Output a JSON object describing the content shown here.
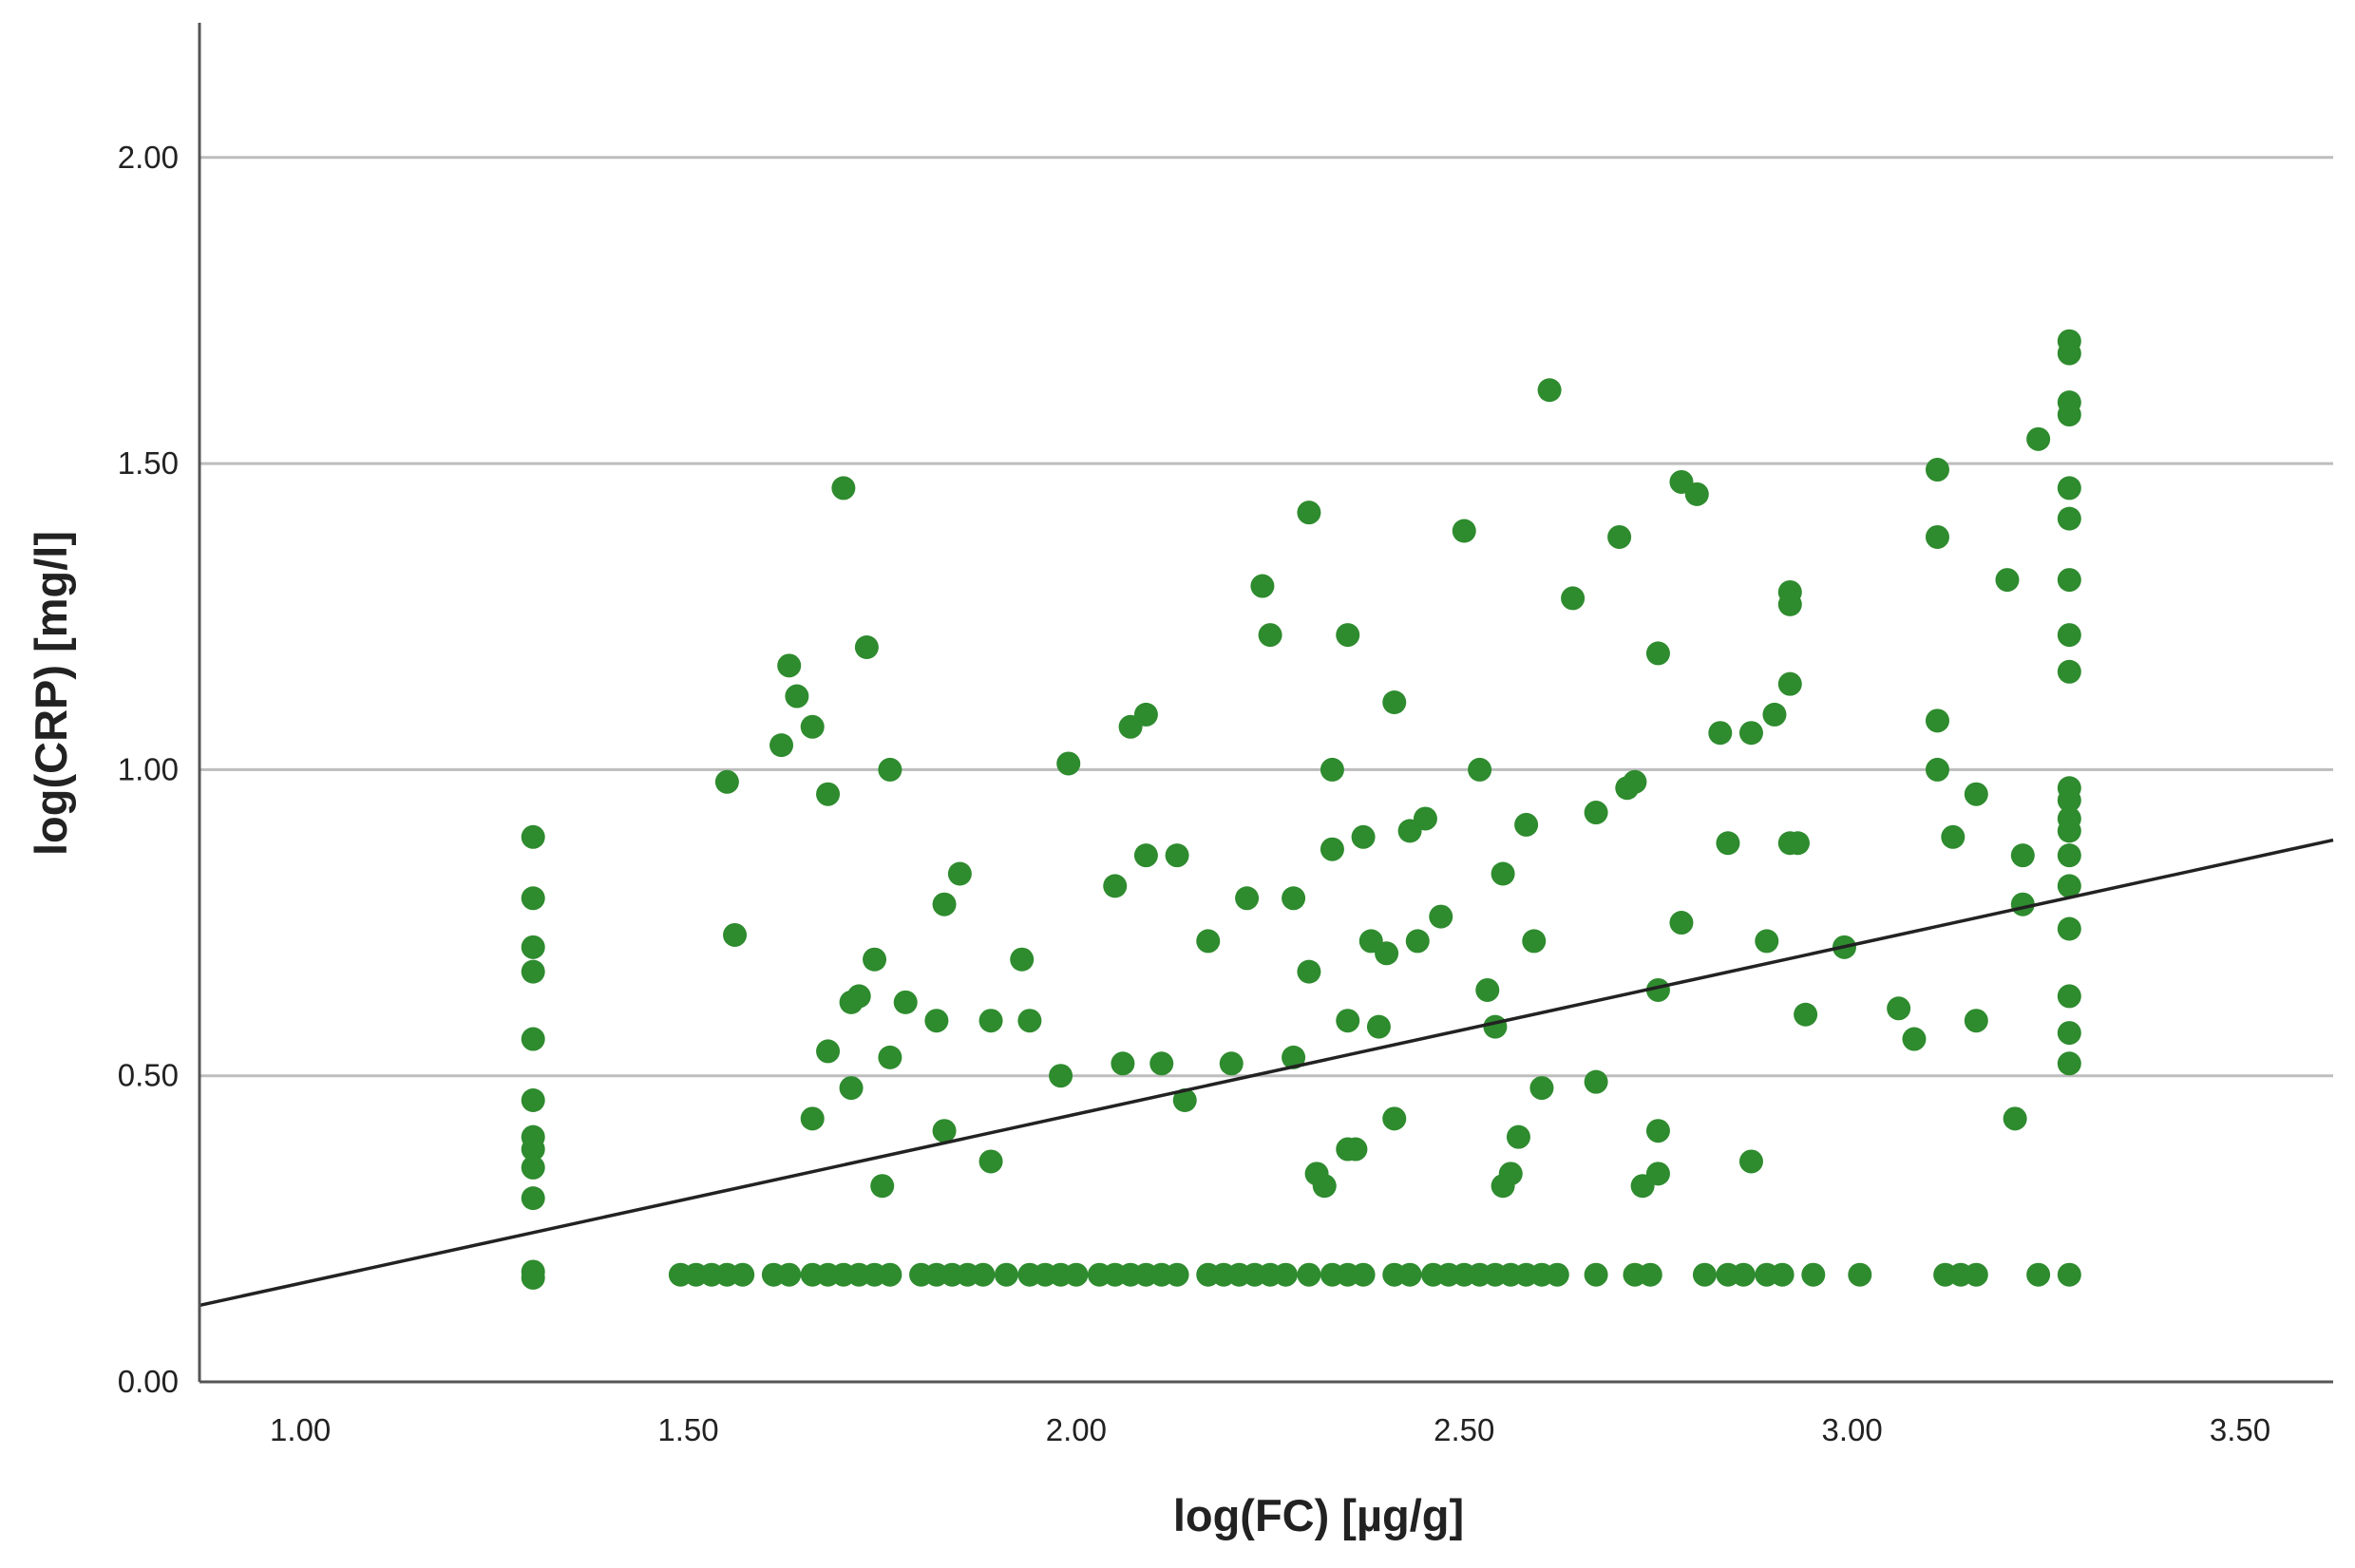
{
  "chart_data": {
    "type": "scatter",
    "title": "",
    "xlabel": "log(FC) [µg/g]",
    "ylabel": "log(CRP) [mg/l]",
    "xlim": [
      0.87,
      3.62
    ],
    "ylim": [
      0.0,
      2.22
    ],
    "x_ticks": [
      "1.00",
      "1.50",
      "2.00",
      "2.50",
      "3.00",
      "3.50"
    ],
    "y_ticks": [
      "0.00",
      "0.50",
      "1.00",
      "1.50",
      "2.00"
    ],
    "grid": "horizontal",
    "colors": {
      "points": "#2e8b2e",
      "fit_line": "#222222",
      "grid": "#bdbdbd",
      "axis": "#555555"
    },
    "fit_line": {
      "x": [
        0.87,
        3.62
      ],
      "y": [
        0.125,
        0.885
      ]
    },
    "points": [
      [
        1.3,
        0.89
      ],
      [
        1.3,
        0.79
      ],
      [
        1.3,
        0.71
      ],
      [
        1.3,
        0.67
      ],
      [
        1.3,
        0.56
      ],
      [
        1.3,
        0.46
      ],
      [
        1.3,
        0.4
      ],
      [
        1.3,
        0.38
      ],
      [
        1.3,
        0.35
      ],
      [
        1.3,
        0.3
      ],
      [
        1.3,
        0.18
      ],
      [
        1.3,
        0.17
      ],
      [
        1.55,
        0.98
      ],
      [
        1.56,
        0.73
      ],
      [
        1.62,
        1.04
      ],
      [
        1.63,
        1.17
      ],
      [
        1.64,
        1.12
      ],
      [
        1.66,
        1.07
      ],
      [
        1.66,
        0.43
      ],
      [
        1.68,
        0.54
      ],
      [
        1.68,
        0.96
      ],
      [
        1.7,
        1.46
      ],
      [
        1.71,
        0.62
      ],
      [
        1.71,
        0.48
      ],
      [
        1.72,
        0.63
      ],
      [
        1.73,
        1.2
      ],
      [
        1.74,
        0.69
      ],
      [
        1.75,
        0.32
      ],
      [
        1.76,
        0.53
      ],
      [
        1.76,
        1.0
      ],
      [
        1.78,
        0.62
      ],
      [
        1.82,
        0.59
      ],
      [
        1.83,
        0.78
      ],
      [
        1.83,
        0.41
      ],
      [
        1.85,
        0.83
      ],
      [
        1.89,
        0.59
      ],
      [
        1.89,
        0.36
      ],
      [
        1.93,
        0.69
      ],
      [
        1.94,
        0.59
      ],
      [
        1.98,
        0.5
      ],
      [
        1.99,
        1.01
      ],
      [
        2.05,
        0.81
      ],
      [
        2.06,
        0.52
      ],
      [
        2.07,
        1.07
      ],
      [
        2.09,
        0.86
      ],
      [
        2.09,
        1.09
      ],
      [
        2.11,
        0.52
      ],
      [
        2.13,
        0.86
      ],
      [
        2.14,
        0.46
      ],
      [
        2.17,
        0.72
      ],
      [
        2.2,
        0.52
      ],
      [
        2.22,
        0.79
      ],
      [
        2.24,
        1.3
      ],
      [
        2.25,
        1.22
      ],
      [
        2.28,
        0.79
      ],
      [
        2.28,
        0.53
      ],
      [
        2.3,
        0.67
      ],
      [
        2.3,
        1.42
      ],
      [
        2.31,
        0.34
      ],
      [
        2.32,
        0.32
      ],
      [
        2.33,
        0.87
      ],
      [
        2.33,
        1.0
      ],
      [
        2.35,
        1.22
      ],
      [
        2.35,
        0.59
      ],
      [
        2.35,
        0.38
      ],
      [
        2.36,
        0.38
      ],
      [
        2.37,
        0.89
      ],
      [
        2.38,
        0.72
      ],
      [
        2.39,
        0.58
      ],
      [
        2.4,
        0.7
      ],
      [
        2.41,
        0.43
      ],
      [
        2.41,
        1.11
      ],
      [
        2.43,
        0.9
      ],
      [
        2.44,
        0.72
      ],
      [
        2.45,
        0.92
      ],
      [
        2.47,
        0.76
      ],
      [
        2.5,
        1.39
      ],
      [
        2.52,
        1.0
      ],
      [
        2.53,
        0.64
      ],
      [
        2.54,
        0.58
      ],
      [
        2.55,
        0.32
      ],
      [
        2.55,
        0.83
      ],
      [
        2.56,
        0.34
      ],
      [
        2.57,
        0.4
      ],
      [
        2.58,
        0.91
      ],
      [
        2.59,
        0.72
      ],
      [
        2.6,
        0.48
      ],
      [
        2.61,
        1.62
      ],
      [
        2.64,
        1.28
      ],
      [
        2.67,
        0.93
      ],
      [
        2.67,
        0.49
      ],
      [
        2.7,
        1.38
      ],
      [
        2.71,
        0.97
      ],
      [
        2.72,
        0.98
      ],
      [
        2.73,
        0.32
      ],
      [
        2.75,
        0.41
      ],
      [
        2.75,
        0.64
      ],
      [
        2.75,
        1.19
      ],
      [
        2.75,
        0.34
      ],
      [
        2.78,
        1.47
      ],
      [
        2.78,
        0.75
      ],
      [
        2.8,
        1.45
      ],
      [
        2.83,
        1.06
      ],
      [
        2.84,
        0.88
      ],
      [
        2.87,
        1.06
      ],
      [
        2.87,
        0.36
      ],
      [
        2.89,
        0.72
      ],
      [
        2.9,
        1.09
      ],
      [
        2.92,
        1.27
      ],
      [
        2.92,
        1.29
      ],
      [
        2.92,
        1.14
      ],
      [
        2.92,
        0.88
      ],
      [
        2.93,
        0.88
      ],
      [
        2.94,
        0.6
      ],
      [
        2.99,
        0.71
      ],
      [
        3.06,
        0.61
      ],
      [
        3.08,
        0.56
      ],
      [
        3.11,
        1.38
      ],
      [
        3.11,
        1.49
      ],
      [
        3.11,
        1.08
      ],
      [
        3.11,
        1.0
      ],
      [
        3.13,
        0.89
      ],
      [
        3.16,
        0.59
      ],
      [
        3.16,
        0.96
      ],
      [
        3.2,
        1.31
      ],
      [
        3.21,
        0.43
      ],
      [
        3.22,
        0.86
      ],
      [
        3.22,
        0.78
      ],
      [
        3.24,
        1.54
      ],
      [
        3.28,
        1.7
      ],
      [
        3.28,
        1.68
      ],
      [
        3.28,
        1.6
      ],
      [
        3.28,
        1.58
      ],
      [
        3.28,
        1.46
      ],
      [
        3.28,
        1.41
      ],
      [
        3.28,
        1.31
      ],
      [
        3.28,
        1.22
      ],
      [
        3.28,
        1.16
      ],
      [
        3.28,
        0.97
      ],
      [
        3.28,
        0.95
      ],
      [
        3.28,
        0.92
      ],
      [
        3.28,
        0.9
      ],
      [
        3.28,
        0.86
      ],
      [
        3.28,
        0.81
      ],
      [
        3.28,
        0.74
      ],
      [
        3.28,
        0.63
      ],
      [
        3.28,
        0.57
      ],
      [
        3.28,
        0.52
      ],
      [
        1.49,
        0.175
      ],
      [
        1.51,
        0.175
      ],
      [
        1.53,
        0.175
      ],
      [
        1.55,
        0.175
      ],
      [
        1.57,
        0.175
      ],
      [
        1.61,
        0.175
      ],
      [
        1.63,
        0.175
      ],
      [
        1.66,
        0.175
      ],
      [
        1.68,
        0.175
      ],
      [
        1.7,
        0.175
      ],
      [
        1.72,
        0.175
      ],
      [
        1.74,
        0.175
      ],
      [
        1.76,
        0.175
      ],
      [
        1.8,
        0.175
      ],
      [
        1.82,
        0.175
      ],
      [
        1.84,
        0.175
      ],
      [
        1.86,
        0.175
      ],
      [
        1.88,
        0.175
      ],
      [
        1.91,
        0.175
      ],
      [
        1.94,
        0.175
      ],
      [
        1.96,
        0.175
      ],
      [
        1.98,
        0.175
      ],
      [
        2.0,
        0.175
      ],
      [
        2.03,
        0.175
      ],
      [
        2.05,
        0.175
      ],
      [
        2.07,
        0.175
      ],
      [
        2.09,
        0.175
      ],
      [
        2.11,
        0.175
      ],
      [
        2.13,
        0.175
      ],
      [
        2.17,
        0.175
      ],
      [
        2.19,
        0.175
      ],
      [
        2.21,
        0.175
      ],
      [
        2.23,
        0.175
      ],
      [
        2.25,
        0.175
      ],
      [
        2.27,
        0.175
      ],
      [
        2.3,
        0.175
      ],
      [
        2.33,
        0.175
      ],
      [
        2.35,
        0.175
      ],
      [
        2.37,
        0.175
      ],
      [
        2.41,
        0.175
      ],
      [
        2.43,
        0.175
      ],
      [
        2.46,
        0.175
      ],
      [
        2.48,
        0.175
      ],
      [
        2.5,
        0.175
      ],
      [
        2.52,
        0.175
      ],
      [
        2.54,
        0.175
      ],
      [
        2.56,
        0.175
      ],
      [
        2.58,
        0.175
      ],
      [
        2.6,
        0.175
      ],
      [
        2.62,
        0.175
      ],
      [
        2.67,
        0.175
      ],
      [
        2.72,
        0.175
      ],
      [
        2.74,
        0.175
      ],
      [
        2.81,
        0.175
      ],
      [
        2.84,
        0.175
      ],
      [
        2.86,
        0.175
      ],
      [
        2.89,
        0.175
      ],
      [
        2.91,
        0.175
      ],
      [
        2.95,
        0.175
      ],
      [
        3.01,
        0.175
      ],
      [
        3.12,
        0.175
      ],
      [
        3.14,
        0.175
      ],
      [
        3.16,
        0.175
      ],
      [
        3.24,
        0.175
      ],
      [
        3.28,
        0.175
      ]
    ]
  }
}
